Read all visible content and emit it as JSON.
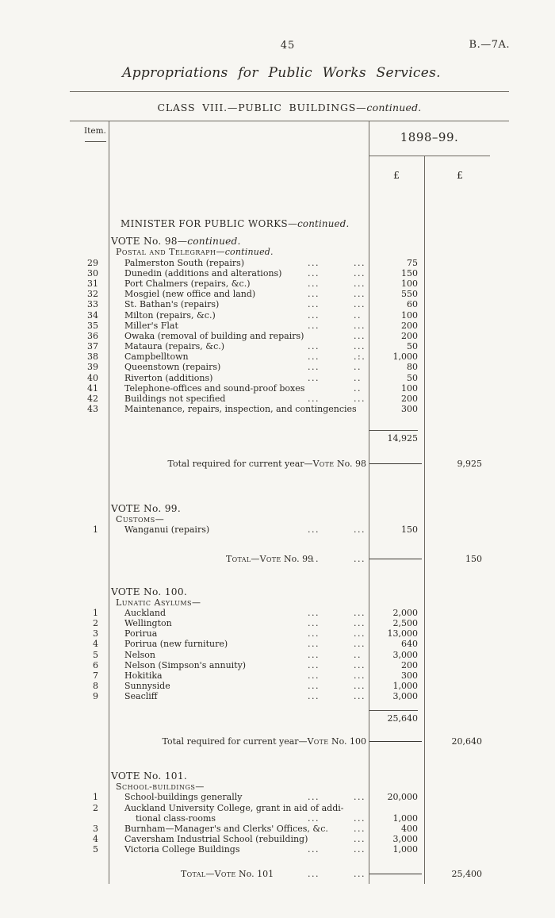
{
  "page": {
    "number": "45",
    "doc_ref": "B.—7A.",
    "title": "Appropriations for Public Works Services.",
    "class_heading": "CLASS VIII.—PUBLIC BUILDINGS—",
    "class_heading_cont": "continued.",
    "text_color": "#2b2823",
    "paper_color": "#f7f6f2"
  },
  "table": {
    "item_header": "Item.",
    "year_header": "1898–99.",
    "currency": "£"
  },
  "sections": [
    {
      "name": "vote-98",
      "rows": [
        {
          "type": "main",
          "text": "MINISTER FOR PUBLIC WORKS",
          "cont": "—continued."
        },
        {
          "type": "vote",
          "text": "VOTE No. 98",
          "cont": "—continued."
        },
        {
          "type": "sub",
          "text": "Postal and Telegraph",
          "cont": "—continued."
        },
        {
          "type": "item",
          "no": "29",
          "label": "Palmerston South (repairs)",
          "d1": "...",
          "d2": "...",
          "a1": "75"
        },
        {
          "type": "item",
          "no": "30",
          "label": "Dunedin (additions and alterations)",
          "d1": "...",
          "d2": "...",
          "a1": "150"
        },
        {
          "type": "item",
          "no": "31",
          "label": "Port Chalmers (repairs, &c.)",
          "d1": "...",
          "d2": "...",
          "a1": "100"
        },
        {
          "type": "item",
          "no": "32",
          "label": "Mosgiel (new office and land)",
          "d1": "...",
          "d2": "...",
          "a1": "550"
        },
        {
          "type": "item",
          "no": "33",
          "label": "St. Bathan's (repairs)",
          "d1": "...",
          "d2": "...",
          "a1": "60"
        },
        {
          "type": "item",
          "no": "34",
          "label": "Milton (repairs, &c.)",
          "d1": "...",
          "d2": "..",
          "a1": "100"
        },
        {
          "type": "item",
          "no": "35",
          "label": "Miller's Flat",
          "d1": "...",
          "d2": "...",
          "a1": "200"
        },
        {
          "type": "item",
          "no": "36",
          "label": "Owaka (removal of building and repairs)",
          "d2": "...",
          "a1": "200"
        },
        {
          "type": "item",
          "no": "37",
          "label": "Mataura (repairs, &c.)",
          "d1": "...",
          "d2": "...",
          "a1": "50"
        },
        {
          "type": "item",
          "no": "38",
          "label": "Campbelltown",
          "d1": "...",
          "d2": ".:.",
          "a1": "1,000"
        },
        {
          "type": "item",
          "no": "39",
          "label": "Queenstown (repairs)",
          "d1": "...",
          "d2": "..",
          "a1": "80"
        },
        {
          "type": "item",
          "no": "40",
          "label": "Riverton (additions)",
          "d1": "...",
          "d2": "..",
          "a1": "50"
        },
        {
          "type": "item",
          "no": "41",
          "label": "Telephone-offices and sound-proof boxes",
          "d2": "..",
          "a1": "100"
        },
        {
          "type": "item",
          "no": "42",
          "label": "Buildings not specified",
          "d1": "...",
          "d2": "...",
          "a1": "200"
        },
        {
          "type": "item",
          "no": "43",
          "label": "Maintenance, repairs, inspection, and contingencies",
          "a1": "300"
        },
        {
          "type": "subtotal",
          "a1": "14,925"
        },
        {
          "type": "total-right",
          "pre": "Total required for current year—",
          "sc": "Vote",
          "end": " No. 98",
          "a2": "9,925"
        }
      ]
    },
    {
      "name": "vote-99",
      "rows": [
        {
          "type": "vote",
          "text": "VOTE No. 99."
        },
        {
          "type": "sub",
          "text": "Customs—"
        },
        {
          "type": "item",
          "no": "1",
          "label": "Wanganui (repairs)",
          "d1": "...",
          "d2": "...",
          "a1": "150"
        },
        {
          "type": "total-center",
          "sc": "Total—Vote",
          "end": " No. 99",
          "d1": "...",
          "d2": "...",
          "a2": "150"
        }
      ]
    },
    {
      "name": "vote-100",
      "rows": [
        {
          "type": "vote",
          "text": "VOTE No. 100."
        },
        {
          "type": "sub",
          "text": "Lunatic Asylums—"
        },
        {
          "type": "item",
          "no": "1",
          "label": "Auckland",
          "d1": "...",
          "d2": "...",
          "a1": "2,000"
        },
        {
          "type": "item",
          "no": "2",
          "label": "Wellington",
          "d1": "...",
          "d2": "...",
          "a1": "2,500"
        },
        {
          "type": "item",
          "no": "3",
          "label": "Porirua",
          "d1": "...",
          "d2": "...",
          "a1": "13,000"
        },
        {
          "type": "item",
          "no": "4",
          "label": "Porirua (new furniture)",
          "d1": "...",
          "d2": "...",
          "a1": "640"
        },
        {
          "type": "item",
          "no": "5",
          "label": "Nelson",
          "d1": "...",
          "d2": "..",
          "a1": "3,000"
        },
        {
          "type": "item",
          "no": "6",
          "label": "Nelson (Simpson's annuity)",
          "d1": "...",
          "d2": "...",
          "a1": "200"
        },
        {
          "type": "item",
          "no": "7",
          "label": "Hokitika",
          "d1": "...",
          "d2": "...",
          "a1": "300"
        },
        {
          "type": "item",
          "no": "8",
          "label": "Sunnyside",
          "d1": "...",
          "d2": "...",
          "a1": "1,000"
        },
        {
          "type": "item",
          "no": "9",
          "label": "Seacliff",
          "d1": "...",
          "d2": "...",
          "a1": "3,000"
        },
        {
          "type": "subtotal",
          "a1": "25,640"
        },
        {
          "type": "total-right",
          "pre": "Total required for current year—",
          "sc": "Vote",
          "end": " No. 100",
          "a2": "20,640"
        }
      ]
    },
    {
      "name": "vote-101",
      "rows": [
        {
          "type": "vote",
          "text": "VOTE No. 101."
        },
        {
          "type": "sub",
          "text": "School-buildings—"
        },
        {
          "type": "item",
          "no": "1",
          "label": "School-buildings generally",
          "d1": "...",
          "d2": "...",
          "a1": "20,000"
        },
        {
          "type": "item",
          "no": "2",
          "label": "Auckland University College, grant in aid of addi-"
        },
        {
          "type": "item-cont",
          "label": "tional class-rooms",
          "d1": "...",
          "d2": "...",
          "a1": "1,000"
        },
        {
          "type": "item",
          "no": "3",
          "label": "Burnham—Manager's and Clerks' Offices, &c.",
          "d2": "...",
          "a1": "400"
        },
        {
          "type": "item",
          "no": "4",
          "label": "Caversham Industrial School (rebuilding)",
          "d2": "...",
          "a1": "3,000"
        },
        {
          "type": "item",
          "no": "5",
          "label": "Victoria College Buildings",
          "d1": "...",
          "d2": "...",
          "a1": "1,000"
        },
        {
          "type": "total-center",
          "sc": "Total—Vote",
          "end": " No. 101",
          "d1": "...",
          "d2": "...",
          "a2": "25,400"
        }
      ]
    }
  ]
}
